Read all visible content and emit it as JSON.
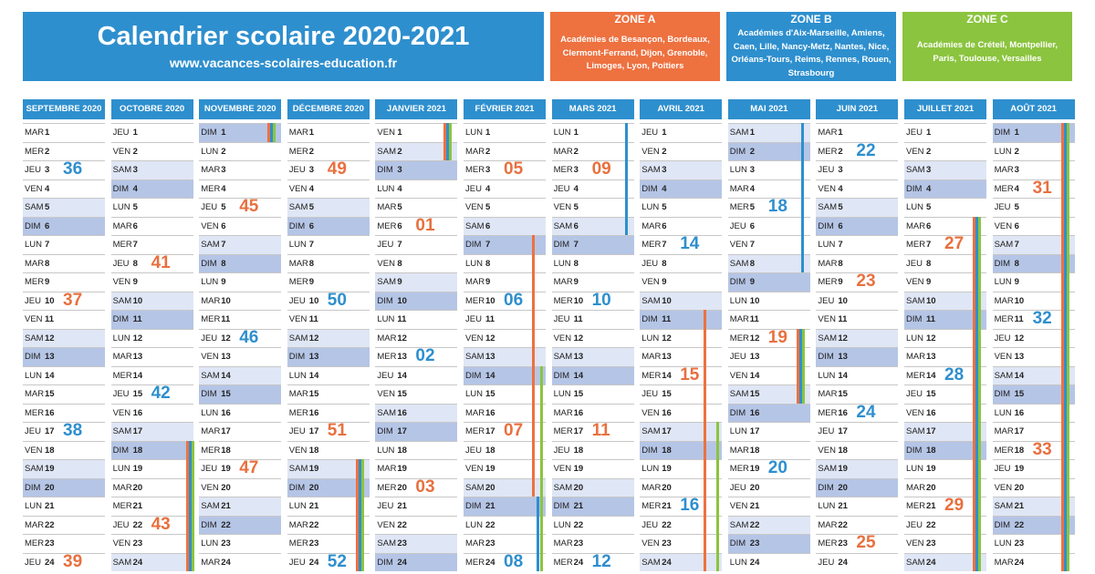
{
  "header": {
    "title": "Calendrier scolaire 2020-2021",
    "url": "www.vacances-scolaires-education.fr"
  },
  "zones": [
    {
      "name": "ZONE A",
      "color": "#ee7140",
      "lines": [
        "Académies de Besançon, Bordeaux,",
        "Clermont-Ferrand, Dijon, Grenoble,",
        "Limoges, Lyon, Poitiers"
      ]
    },
    {
      "name": "ZONE B",
      "color": "#2e8fce",
      "lines": [
        "Académies d'Aix-Marseille, Amiens,",
        "Caen, Lille, Nancy-Metz, Nantes, Nice,",
        "Orléans-Tours, Reims, Rennes, Rouen,",
        "Strasbourg"
      ]
    },
    {
      "name": "ZONE C",
      "color": "#8bc43f",
      "lines": [
        "Académies de Créteil, Montpellier,",
        "Paris, Toulouse, Versailles"
      ]
    }
  ],
  "colors": {
    "zoneA": "#ee7140",
    "zoneB": "#2e8fce",
    "zoneC": "#8bc43f"
  },
  "months": [
    {
      "name": "SEPTEMBRE 2020",
      "first": 1,
      "weeks": [
        {
          "n": "36",
          "c": "blue",
          "r": 2
        },
        {
          "n": "37",
          "c": "orange",
          "r": 9
        },
        {
          "n": "38",
          "c": "blue",
          "r": 16
        },
        {
          "n": "39",
          "c": "orange",
          "r": 23
        }
      ]
    },
    {
      "name": "OCTOBRE 2020",
      "first": 3,
      "weeks": [
        {
          "n": "41",
          "c": "orange",
          "r": 7
        },
        {
          "n": "42",
          "c": "blue",
          "r": 14
        },
        {
          "n": "43",
          "c": "orange",
          "r": 21
        }
      ]
    },
    {
      "name": "NOVEMBRE 2020",
      "first": 6,
      "weeks": [
        {
          "n": "45",
          "c": "orange",
          "r": 4
        },
        {
          "n": "46",
          "c": "blue",
          "r": 11
        },
        {
          "n": "47",
          "c": "orange",
          "r": 18
        }
      ]
    },
    {
      "name": "DÉCEMBRE 2020",
      "first": 1,
      "weeks": [
        {
          "n": "49",
          "c": "orange",
          "r": 2
        },
        {
          "n": "50",
          "c": "blue",
          "r": 9
        },
        {
          "n": "51",
          "c": "orange",
          "r": 16
        },
        {
          "n": "52",
          "c": "blue",
          "r": 23
        }
      ]
    },
    {
      "name": "JANVIER 2021",
      "first": 4,
      "weeks": [
        {
          "n": "01",
          "c": "orange",
          "r": 5
        },
        {
          "n": "02",
          "c": "blue",
          "r": 12
        },
        {
          "n": "03",
          "c": "orange",
          "r": 19
        }
      ]
    },
    {
      "name": "FÉVRIER 2021",
      "first": 0,
      "weeks": [
        {
          "n": "05",
          "c": "orange",
          "r": 2
        },
        {
          "n": "06",
          "c": "blue",
          "r": 9
        },
        {
          "n": "07",
          "c": "orange",
          "r": 16
        },
        {
          "n": "08",
          "c": "blue",
          "r": 23
        }
      ]
    },
    {
      "name": "MARS 2021",
      "first": 0,
      "weeks": [
        {
          "n": "09",
          "c": "orange",
          "r": 2
        },
        {
          "n": "10",
          "c": "blue",
          "r": 9
        },
        {
          "n": "11",
          "c": "orange",
          "r": 16
        },
        {
          "n": "12",
          "c": "blue",
          "r": 23
        }
      ]
    },
    {
      "name": "AVRIL 2021",
      "first": 3,
      "weeks": [
        {
          "n": "14",
          "c": "blue",
          "r": 6
        },
        {
          "n": "15",
          "c": "orange",
          "r": 13
        },
        {
          "n": "16",
          "c": "blue",
          "r": 20
        }
      ]
    },
    {
      "name": "MAI 2021",
      "first": 5,
      "weeks": [
        {
          "n": "18",
          "c": "blue",
          "r": 4
        },
        {
          "n": "19",
          "c": "orange",
          "r": 11
        },
        {
          "n": "20",
          "c": "blue",
          "r": 18
        }
      ]
    },
    {
      "name": "JUIN 2021",
      "first": 1,
      "weeks": [
        {
          "n": "22",
          "c": "blue",
          "r": 1
        },
        {
          "n": "23",
          "c": "orange",
          "r": 8
        },
        {
          "n": "24",
          "c": "blue",
          "r": 15
        },
        {
          "n": "25",
          "c": "orange",
          "r": 22
        }
      ]
    },
    {
      "name": "JUILLET 2021",
      "first": 3,
      "weeks": [
        {
          "n": "27",
          "c": "orange",
          "r": 6
        },
        {
          "n": "28",
          "c": "blue",
          "r": 13
        },
        {
          "n": "29",
          "c": "orange",
          "r": 20
        }
      ]
    },
    {
      "name": "AOÛT 2021",
      "first": 6,
      "weeks": [
        {
          "n": "31",
          "c": "orange",
          "r": 3
        },
        {
          "n": "32",
          "c": "blue",
          "r": 10
        },
        {
          "n": "33",
          "c": "orange",
          "r": 17
        }
      ]
    }
  ],
  "day_abbr": [
    "LUN",
    "MAR",
    "MER",
    "JEU",
    "VEN",
    "SAM",
    "DIM"
  ]
}
